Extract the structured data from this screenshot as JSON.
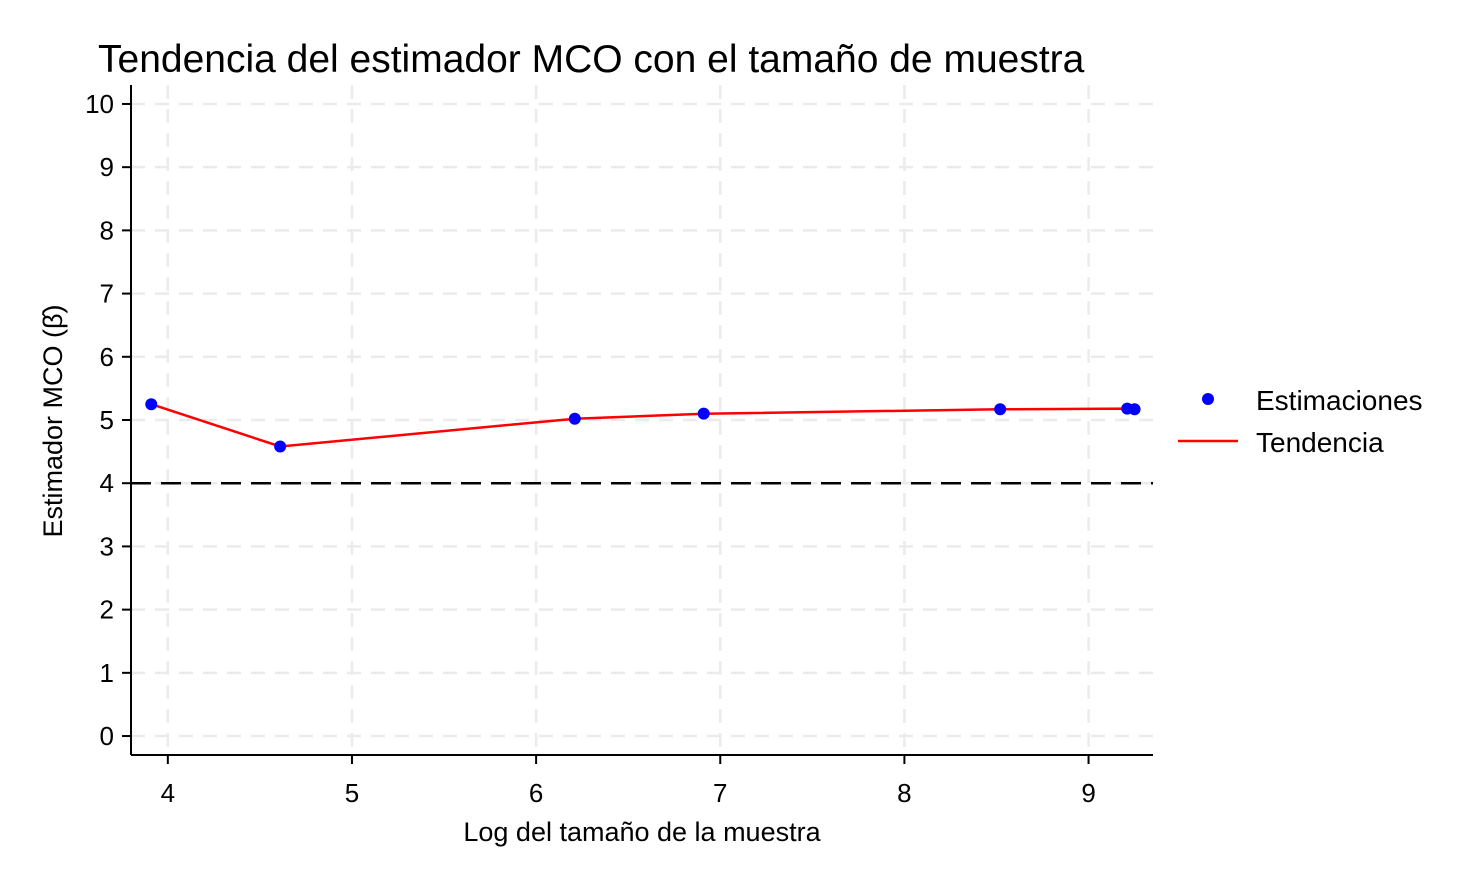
{
  "colors": {
    "points": "#0000ff",
    "trend": "#ff0000",
    "reference": "#000000",
    "grid": "#ebebeb"
  },
  "chart_data": {
    "type": "scatter",
    "title": "Tendencia del estimador MCO con el tamaño de muestra",
    "xlabel": "Log del tamaño de la muestra",
    "ylabel": "Estimador MCO (β̂)",
    "xlim": [
      3.8,
      9.35
    ],
    "ylim": [
      -0.3,
      10.3
    ],
    "x_ticks": [
      4,
      5,
      6,
      7,
      8,
      9
    ],
    "y_ticks": [
      0,
      1,
      2,
      3,
      4,
      5,
      6,
      7,
      8,
      9,
      10
    ],
    "grid": true,
    "legend_position": "right",
    "reference_line": {
      "y": 4,
      "style": "dashed"
    },
    "series": [
      {
        "name": "Estimaciones",
        "kind": "points",
        "x": [
          3.91,
          4.61,
          6.21,
          6.91,
          8.52,
          9.21,
          9.25
        ],
        "y": [
          5.25,
          4.58,
          5.02,
          5.1,
          5.17,
          5.18,
          5.17
        ]
      },
      {
        "name": "Tendencia",
        "kind": "line",
        "x": [
          3.91,
          4.61,
          6.21,
          6.91,
          8.52,
          9.21,
          9.25
        ],
        "y": [
          5.25,
          4.58,
          5.02,
          5.1,
          5.17,
          5.18,
          5.17
        ]
      }
    ]
  }
}
